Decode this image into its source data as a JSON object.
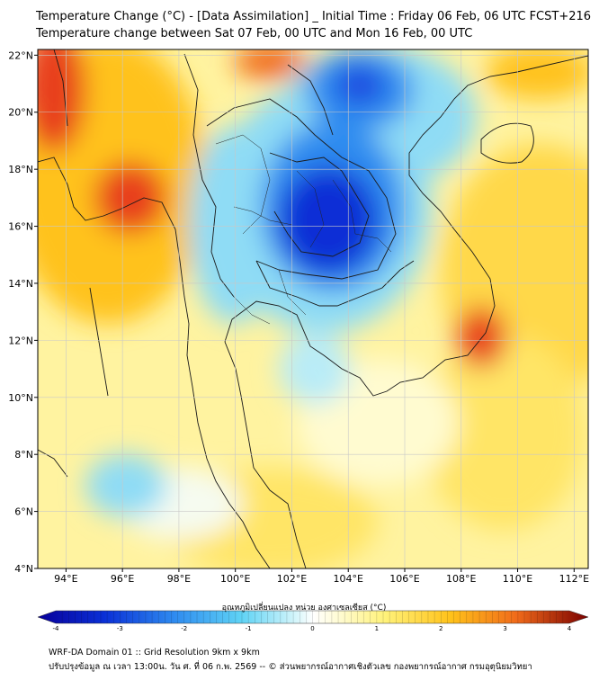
{
  "title": {
    "line1": "Temperature Change (°C) - [Data Assimilation] _ Initial Time : Friday 06 Feb, 06 UTC FCST+216",
    "line2": "Temperature change between Sat 07 Feb, 00 UTC and Mon 16 Feb, 00 UTC"
  },
  "map": {
    "lon_range": [
      93,
      112.5
    ],
    "lat_range": [
      4,
      22.2
    ],
    "lon_ticks": [
      "94°E",
      "96°E",
      "98°E",
      "100°E",
      "102°E",
      "104°E",
      "106°E",
      "108°E",
      "110°E",
      "112°E"
    ],
    "lon_values": [
      94,
      96,
      98,
      100,
      102,
      104,
      106,
      108,
      110,
      112
    ],
    "lat_ticks": [
      "22°N",
      "20°N",
      "18°N",
      "16°N",
      "14°N",
      "12°N",
      "10°N",
      "8°N",
      "6°N",
      "4°N"
    ],
    "lat_values": [
      22,
      20,
      18,
      16,
      14,
      12,
      10,
      8,
      6,
      4
    ],
    "colors": {
      "strong_cooling": "#0a2fd6",
      "cooling": "#2f8cf0",
      "mild_cooling": "#8fdcf5",
      "neutral": "#ffffe0",
      "mild_warming": "#fff27a",
      "warming": "#ffc21a",
      "strong_warming": "#e8401a"
    }
  },
  "colorbar": {
    "label": "อุณหภูมิเปลี่ยนแปลง หน่วย องศาเซลเซียส (°C)",
    "ticks": [
      "-4",
      "-3",
      "-2",
      "-1",
      "0",
      "1",
      "2",
      "3",
      "4"
    ],
    "values": [
      -4,
      -3,
      -2,
      -1,
      0,
      1,
      2,
      3,
      4
    ],
    "range": [
      -4,
      4
    ]
  },
  "footer": {
    "line1": "WRF-DA Domain 01 :: Grid Resolution 9km x 9km",
    "line2": "ปรับปรุงข้อมูล ณ เวลา 13:00น. วัน ศ. ที่ 06 ก.พ. 2569 -- © ส่วนพยากรณ์อากาศเชิงตัวเลข กองพยากรณ์อากาศ กรมอุตุนิยมวิทยา"
  }
}
